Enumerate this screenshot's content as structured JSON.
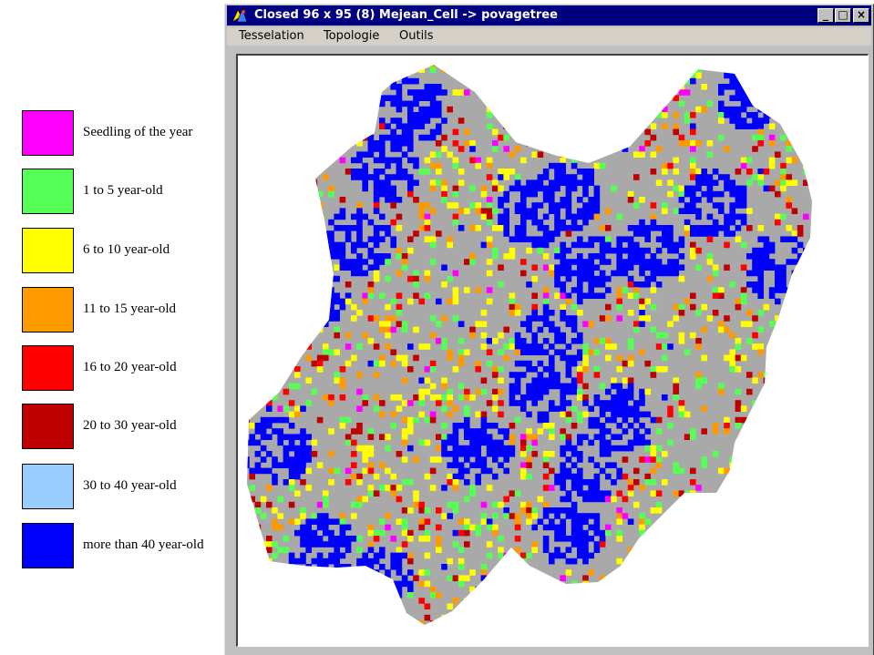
{
  "window": {
    "title": "Closed 96 x 95 (8)  Mejean_Cell -> povagetree",
    "controls": {
      "minimize": "_",
      "maximize": "□",
      "close": "×"
    }
  },
  "menu": {
    "items": [
      {
        "label": "Tesselation"
      },
      {
        "label": "Topologie"
      },
      {
        "label": "Outils"
      }
    ]
  },
  "legend": {
    "items": [
      {
        "label": "Seedling of the year",
        "color": "#ff00ff"
      },
      {
        "label": "1 to 5 year-old",
        "color": "#55ff55"
      },
      {
        "label": "6 to 10 year-old",
        "color": "#ffff00"
      },
      {
        "label": "11 to 15 year-old",
        "color": "#ff9900"
      },
      {
        "label": "16 to 20 year-old",
        "color": "#ff0000"
      },
      {
        "label": "20 to 30 year-old",
        "color": "#c00000"
      },
      {
        "label": "30 to 40 year-old",
        "color": "#99ccff"
      },
      {
        "label": "more than 40 year-old",
        "color": "#0000ff"
      }
    ]
  },
  "map": {
    "grid": "96 x 95",
    "background_color": "#a9a9a9",
    "cell_colors": [
      "#ff00ff",
      "#55ff55",
      "#ffff00",
      "#ff9900",
      "#ff0000",
      "#c00000",
      "#99ccff",
      "#0000ff"
    ]
  }
}
